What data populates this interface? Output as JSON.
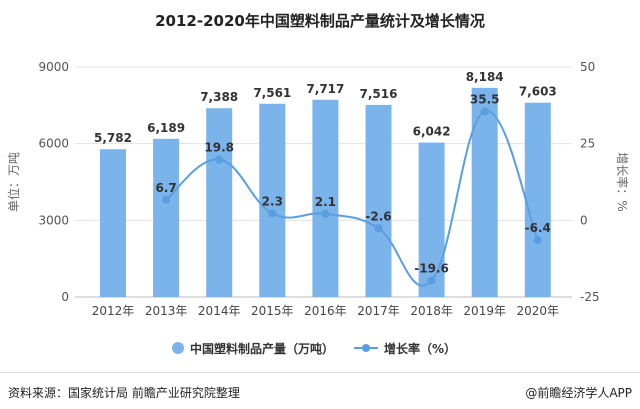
{
  "chart_data": {
    "type": "bar+line",
    "title": "2012-2020年中国塑料制品产量统计及增长情况",
    "categories": [
      "2012年",
      "2013年",
      "2014年",
      "2015年",
      "2016年",
      "2017年",
      "2018年",
      "2019年",
      "2020年"
    ],
    "series": [
      {
        "name": "中国塑料制品产量（万吨）",
        "type": "bar",
        "axis": "left",
        "color": "#7ab4ea",
        "values": [
          5782,
          6189,
          7388,
          7561,
          7717,
          7516,
          6042,
          8184,
          7603
        ],
        "labels": [
          "5,782",
          "6,189",
          "7,388",
          "7,561",
          "7,717",
          "7,516",
          "6,042",
          "8,184",
          "7,603"
        ]
      },
      {
        "name": "增长率（%）",
        "type": "line",
        "axis": "right",
        "color": "#5a9ee0",
        "values": [
          null,
          6.7,
          19.8,
          2.3,
          2.1,
          -2.6,
          -19.6,
          35.5,
          -6.4
        ],
        "labels": [
          "",
          "6.7",
          "19.8",
          "2.3",
          "2.1",
          "-2.6",
          "-19.6",
          "35.5",
          "-6.4"
        ]
      }
    ],
    "ylabel_left": "单位：万吨",
    "ylim_left": [
      0,
      9000
    ],
    "yticks_left": [
      "0",
      "3000",
      "6000",
      "9000"
    ],
    "ylabel_right": "增长率：%",
    "ylim_right": [
      -25,
      50
    ],
    "yticks_right": [
      "-25",
      "0",
      "25",
      "50"
    ],
    "legend_position": "bottom",
    "grid": true
  },
  "footer": {
    "source": "资料来源：国家统计局 前瞻产业研究院整理",
    "app": "@前瞻经济学人APP"
  }
}
